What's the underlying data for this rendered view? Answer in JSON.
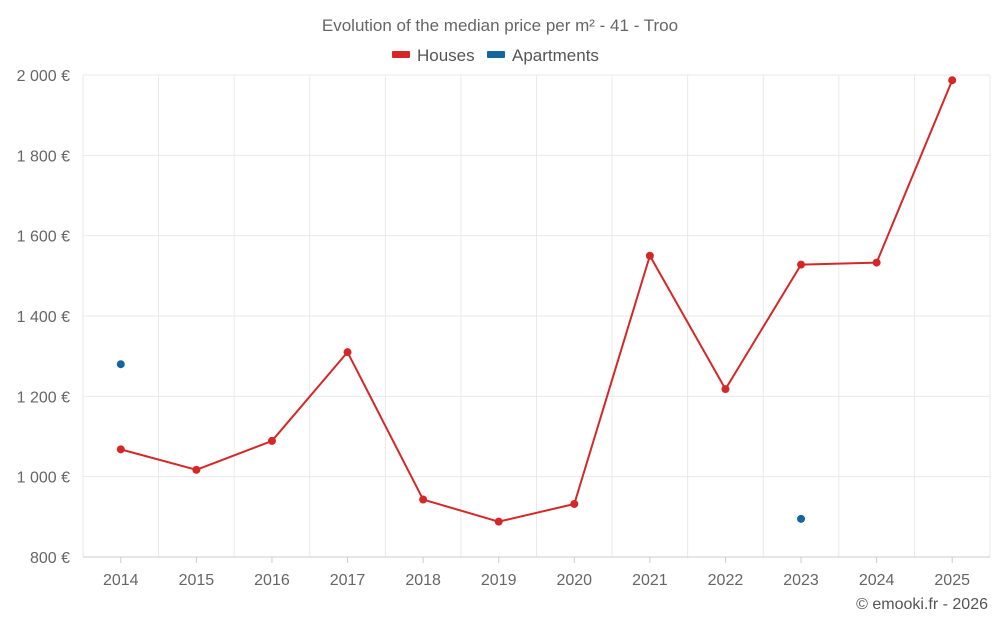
{
  "chart_data": {
    "type": "line",
    "title": "Evolution of the median price per m² - 41 - Troo",
    "categories": [
      "2014",
      "2015",
      "2016",
      "2017",
      "2018",
      "2019",
      "2020",
      "2021",
      "2022",
      "2023",
      "2024",
      "2025"
    ],
    "series": [
      {
        "name": "Houses",
        "color": "#d62728",
        "values": [
          1068,
          1017,
          1089,
          1310,
          943,
          888,
          932,
          1550,
          1218,
          1528,
          1533,
          1987
        ],
        "connected": true
      },
      {
        "name": "Apartments",
        "color": "#1565a0",
        "values": [
          1280,
          null,
          null,
          null,
          null,
          null,
          null,
          null,
          null,
          895,
          null,
          null
        ],
        "connected": false
      }
    ],
    "ylim": [
      800,
      2000
    ],
    "yticks": [
      800,
      1000,
      1200,
      1400,
      1600,
      1800,
      2000
    ],
    "ytick_labels": [
      "800 €",
      "1 000 €",
      "1 200 €",
      "1 400 €",
      "1 600 €",
      "1 800 €",
      "2 000 €"
    ],
    "grid": true,
    "legend": "top-center",
    "xlabel": "",
    "ylabel": ""
  },
  "credit": "© emooki.fr - 2026"
}
